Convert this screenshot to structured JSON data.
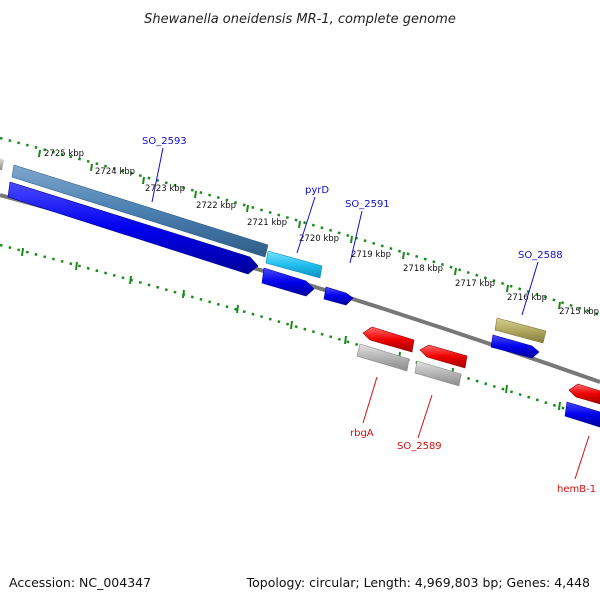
{
  "title": "Shewanella oneidensis MR-1, complete genome",
  "footer": {
    "accession": "Accession: NC_004347",
    "topology": "Topology: circular; Length: 4,969,803 bp; Genes: 4,448"
  },
  "scale_labels": [
    "2725 kbp",
    "2724 kbp",
    "2723 kbp",
    "2722 kbp",
    "2721 kbp",
    "2720 kbp",
    "2719 kbp",
    "2718 kbp",
    "2717 kbp",
    "2716 kbp",
    "2715 kbp"
  ],
  "gene_labels_forward": [
    "SO_2593",
    "pyrD",
    "SO_2591",
    "SO_2588"
  ],
  "gene_labels_reverse": [
    "rbgA",
    "SO_2589",
    "hemB-1"
  ],
  "colors": {
    "blue": "#0000ee",
    "steelblue": "#4a7fb0",
    "cyan": "#22c0f0",
    "red": "#ee0000",
    "gray": "#b4b4b4",
    "olive": "#b0a860",
    "tick_green": "#1a8a1a",
    "backbone": "#777777",
    "label_blue": "#1010c8",
    "label_red": "#d01010"
  }
}
